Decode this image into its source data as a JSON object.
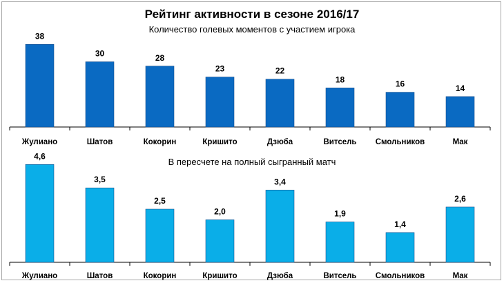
{
  "chart_data": [
    {
      "type": "bar",
      "title": "Рейтинг активности в сезоне 2016/17",
      "subtitle": "Количество голевых моментов с участием игрока",
      "categories": [
        "Жулиано",
        "Шатов",
        "Кокорин",
        "Кришито",
        "Дзюба",
        "Витсель",
        "Смольников",
        "Мак"
      ],
      "values": [
        38,
        30,
        28,
        23,
        22,
        18,
        16,
        14
      ],
      "value_labels": [
        "38",
        "30",
        "28",
        "23",
        "22",
        "18",
        "16",
        "14"
      ],
      "ylim": [
        0,
        40
      ],
      "color": "#0a6ac2",
      "grid": false
    },
    {
      "type": "bar",
      "subtitle": "В пересчете на полный сыгранный матч",
      "categories": [
        "Жулиано",
        "Шатов",
        "Кокорин",
        "Кришито",
        "Дзюба",
        "Витсель",
        "Смольников",
        "Мак"
      ],
      "values": [
        4.6,
        3.5,
        2.5,
        2.0,
        3.4,
        1.9,
        1.4,
        2.6
      ],
      "value_labels": [
        "4,6",
        "3,5",
        "2,5",
        "2,0",
        "3,4",
        "1,9",
        "1,4",
        "2,6"
      ],
      "ylim": [
        0,
        5
      ],
      "color": "#0aaee8",
      "grid": false
    }
  ]
}
